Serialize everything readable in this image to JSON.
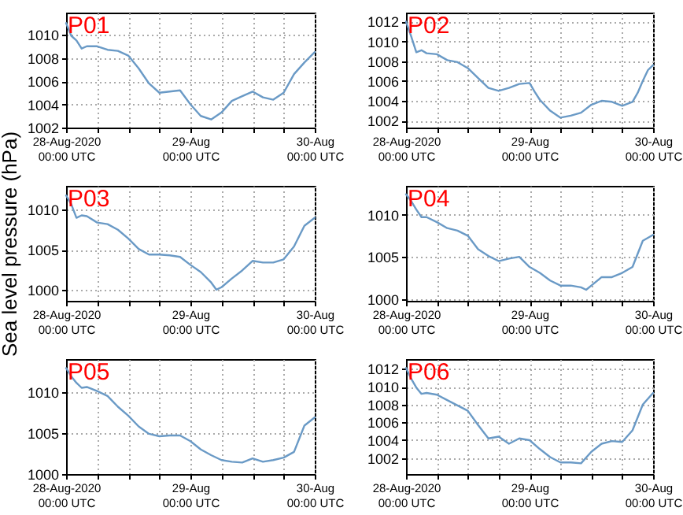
{
  "chart_data": [
    {
      "type": "line",
      "annotations": [
        "P01"
      ],
      "grid": true,
      "xlim": [
        "2020-08-28T00:00",
        "2020-08-30T00:00"
      ],
      "xticks": [
        {
          "value": "2020-08-28T00:00",
          "label": "28-Aug-2020\n00:00 UTC"
        },
        {
          "value": "2020-08-28T06:00",
          "label": null
        },
        {
          "value": "2020-08-28T12:00",
          "label": null
        },
        {
          "value": "2020-08-28T18:00",
          "label": null
        },
        {
          "value": "2020-08-29T00:00",
          "label": "29-Aug\n00:00 UTC"
        },
        {
          "value": "2020-08-29T06:00",
          "label": null
        },
        {
          "value": "2020-08-29T12:00",
          "label": null
        },
        {
          "value": "2020-08-29T18:00",
          "label": null
        },
        {
          "value": "2020-08-30T00:00",
          "label": "30-Aug\n00:00 UTC"
        }
      ],
      "ylim": [
        1002,
        1011.9
      ],
      "yticks": [
        1002,
        1004,
        1006,
        1008,
        1010
      ],
      "x": [
        "2020-08-28T00:00",
        "2020-08-28T01:00",
        "2020-08-28T02:00",
        "2020-08-28T03:00",
        "2020-08-28T04:00",
        "2020-08-28T06:00",
        "2020-08-28T08:00",
        "2020-08-28T10:00",
        "2020-08-28T12:00",
        "2020-08-28T14:00",
        "2020-08-28T16:00",
        "2020-08-28T18:00",
        "2020-08-28T20:00",
        "2020-08-28T22:00",
        "2020-08-29T00:00",
        "2020-08-29T02:00",
        "2020-08-29T04:00",
        "2020-08-29T06:00",
        "2020-08-29T08:00",
        "2020-08-29T10:00",
        "2020-08-29T12:00",
        "2020-08-29T14:00",
        "2020-08-29T16:00",
        "2020-08-29T18:00",
        "2020-08-29T20:00",
        "2020-08-29T22:00",
        "2020-08-30T00:00"
      ],
      "series": [
        {
          "color": "#6a9ac6",
          "values": [
            1011.0,
            1009.9,
            1009.5,
            1008.8,
            1009.0,
            1009.0,
            1008.7,
            1008.6,
            1008.2,
            1007.1,
            1005.8,
            1005.0,
            1005.1,
            1005.2,
            1004.0,
            1003.0,
            1002.7,
            1003.3,
            1004.3,
            1004.7,
            1005.1,
            1004.6,
            1004.4,
            1005.0,
            1006.6,
            1007.6,
            1008.5
          ]
        }
      ]
    },
    {
      "type": "line",
      "annotations": [
        "P02"
      ],
      "grid": true,
      "xlim": [
        "2020-08-28T00:00",
        "2020-08-30T00:00"
      ],
      "xticks": [
        {
          "value": "2020-08-28T00:00",
          "label": "28-Aug-2020\n00:00 UTC"
        },
        {
          "value": "2020-08-28T06:00",
          "label": null
        },
        {
          "value": "2020-08-28T12:00",
          "label": null
        },
        {
          "value": "2020-08-28T18:00",
          "label": null
        },
        {
          "value": "2020-08-29T00:00",
          "label": "29-Aug\n00:00 UTC"
        },
        {
          "value": "2020-08-29T06:00",
          "label": null
        },
        {
          "value": "2020-08-29T12:00",
          "label": null
        },
        {
          "value": "2020-08-29T18:00",
          "label": null
        },
        {
          "value": "2020-08-30T00:00",
          "label": "30-Aug\n00:00 UTC"
        }
      ],
      "ylim": [
        1001.3,
        1012.9
      ],
      "yticks": [
        1002,
        1004,
        1006,
        1008,
        1010,
        1012
      ],
      "x": [
        "2020-08-28T00:00",
        "2020-08-28T01:00",
        "2020-08-28T02:00",
        "2020-08-28T03:00",
        "2020-08-28T04:00",
        "2020-08-28T06:00",
        "2020-08-28T08:00",
        "2020-08-28T10:00",
        "2020-08-28T12:00",
        "2020-08-28T14:00",
        "2020-08-28T16:00",
        "2020-08-28T18:00",
        "2020-08-28T20:00",
        "2020-08-28T22:00",
        "2020-08-29T00:00",
        "2020-08-29T01:00",
        "2020-08-29T02:00",
        "2020-08-29T04:00",
        "2020-08-29T06:00",
        "2020-08-29T08:00",
        "2020-08-29T10:00",
        "2020-08-29T12:00",
        "2020-08-29T14:00",
        "2020-08-29T16:00",
        "2020-08-29T18:00",
        "2020-08-29T20:00",
        "2020-08-29T21:00",
        "2020-08-29T22:00",
        "2020-08-29T23:00",
        "2020-08-30T00:00"
      ],
      "series": [
        {
          "color": "#6a9ac6",
          "values": [
            1012.0,
            1010.5,
            1008.9,
            1009.1,
            1008.8,
            1008.7,
            1008.1,
            1007.9,
            1007.3,
            1006.3,
            1005.3,
            1005.0,
            1005.3,
            1005.7,
            1005.8,
            1004.9,
            1004.1,
            1003.0,
            1002.3,
            1002.5,
            1002.8,
            1003.6,
            1004.0,
            1003.9,
            1003.5,
            1003.9,
            1004.8,
            1006.0,
            1007.1,
            1007.6
          ]
        }
      ]
    },
    {
      "type": "line",
      "annotations": [
        "P03"
      ],
      "ylabel": "Sea level pressure (hPa)",
      "grid": true,
      "xlim": [
        "2020-08-28T00:00",
        "2020-08-30T00:00"
      ],
      "xticks": [
        {
          "value": "2020-08-28T00:00",
          "label": "28-Aug-2020\n00:00 UTC"
        },
        {
          "value": "2020-08-28T06:00",
          "label": null
        },
        {
          "value": "2020-08-28T12:00",
          "label": null
        },
        {
          "value": "2020-08-28T18:00",
          "label": null
        },
        {
          "value": "2020-08-29T00:00",
          "label": "29-Aug\n00:00 UTC"
        },
        {
          "value": "2020-08-29T06:00",
          "label": null
        },
        {
          "value": "2020-08-29T12:00",
          "label": null
        },
        {
          "value": "2020-08-29T18:00",
          "label": null
        },
        {
          "value": "2020-08-30T00:00",
          "label": "30-Aug\n00:00 UTC"
        }
      ],
      "ylim": [
        998.6,
        1013
      ],
      "yticks": [
        1000,
        1005,
        1010
      ],
      "x": [
        "2020-08-28T00:00",
        "2020-08-28T01:00",
        "2020-08-28T02:00",
        "2020-08-28T03:00",
        "2020-08-28T04:00",
        "2020-08-28T06:00",
        "2020-08-28T08:00",
        "2020-08-28T10:00",
        "2020-08-28T12:00",
        "2020-08-28T14:00",
        "2020-08-28T16:00",
        "2020-08-28T18:00",
        "2020-08-28T20:00",
        "2020-08-28T22:00",
        "2020-08-29T00:00",
        "2020-08-29T02:00",
        "2020-08-29T04:00",
        "2020-08-29T05:00",
        "2020-08-29T06:00",
        "2020-08-29T08:00",
        "2020-08-29T10:00",
        "2020-08-29T12:00",
        "2020-08-29T14:00",
        "2020-08-29T16:00",
        "2020-08-29T18:00",
        "2020-08-29T20:00",
        "2020-08-29T22:00",
        "2020-08-30T00:00"
      ],
      "series": [
        {
          "color": "#6a9ac6",
          "values": [
            1011.8,
            1010.7,
            1009.0,
            1009.3,
            1009.2,
            1008.4,
            1008.2,
            1007.5,
            1006.4,
            1005.1,
            1004.4,
            1004.4,
            1004.3,
            1004.1,
            1003.1,
            1002.2,
            1000.9,
            1000.0,
            1000.3,
            1001.4,
            1002.4,
            1003.6,
            1003.4,
            1003.4,
            1003.8,
            1005.4,
            1008.0,
            1009.0
          ]
        }
      ]
    },
    {
      "type": "line",
      "annotations": [
        "P04"
      ],
      "grid": true,
      "xlim": [
        "2020-08-28T00:00",
        "2020-08-30T00:00"
      ],
      "xticks": [
        {
          "value": "2020-08-28T00:00",
          "label": "28-Aug-2020\n00:00 UTC"
        },
        {
          "value": "2020-08-28T06:00",
          "label": null
        },
        {
          "value": "2020-08-28T12:00",
          "label": null
        },
        {
          "value": "2020-08-28T18:00",
          "label": null
        },
        {
          "value": "2020-08-29T00:00",
          "label": "29-Aug\n00:00 UTC"
        },
        {
          "value": "2020-08-29T06:00",
          "label": null
        },
        {
          "value": "2020-08-29T12:00",
          "label": null
        },
        {
          "value": "2020-08-29T18:00",
          "label": null
        },
        {
          "value": "2020-08-30T00:00",
          "label": "30-Aug\n00:00 UTC"
        }
      ],
      "ylim": [
        999.8,
        1013.4
      ],
      "yticks": [
        1000,
        1005,
        1010
      ],
      "x": [
        "2020-08-28T00:00",
        "2020-08-28T01:00",
        "2020-08-28T02:00",
        "2020-08-28T03:00",
        "2020-08-28T04:00",
        "2020-08-28T06:00",
        "2020-08-28T08:00",
        "2020-08-28T10:00",
        "2020-08-28T12:00",
        "2020-08-28T14:00",
        "2020-08-28T16:00",
        "2020-08-28T18:00",
        "2020-08-28T20:00",
        "2020-08-28T22:00",
        "2020-08-29T00:00",
        "2020-08-29T02:00",
        "2020-08-29T04:00",
        "2020-08-29T06:00",
        "2020-08-29T08:00",
        "2020-08-29T10:00",
        "2020-08-29T11:00",
        "2020-08-29T12:00",
        "2020-08-29T14:00",
        "2020-08-29T16:00",
        "2020-08-29T18:00",
        "2020-08-29T20:00",
        "2020-08-29T22:00",
        "2020-08-30T00:00"
      ],
      "series": [
        {
          "color": "#6a9ac6",
          "values": [
            1012.4,
            1011.6,
            1010.6,
            1009.7,
            1009.7,
            1009.1,
            1008.4,
            1008.1,
            1007.5,
            1005.9,
            1005.1,
            1004.5,
            1004.8,
            1005.0,
            1003.8,
            1003.1,
            1002.2,
            1001.6,
            1001.6,
            1001.4,
            1001.1,
            1001.6,
            1002.6,
            1002.6,
            1003.1,
            1003.8,
            1006.9,
            1007.6
          ]
        }
      ]
    },
    {
      "type": "line",
      "annotations": [
        "P05"
      ],
      "grid": true,
      "xlim": [
        "2020-08-28T00:00",
        "2020-08-30T00:00"
      ],
      "xticks": [
        {
          "value": "2020-08-28T00:00",
          "label": "28-Aug-2020\n00:00 UTC"
        },
        {
          "value": "2020-08-28T06:00",
          "label": null
        },
        {
          "value": "2020-08-28T12:00",
          "label": null
        },
        {
          "value": "2020-08-28T18:00",
          "label": null
        },
        {
          "value": "2020-08-29T00:00",
          "label": "29-Aug\n00:00 UTC"
        },
        {
          "value": "2020-08-29T06:00",
          "label": null
        },
        {
          "value": "2020-08-29T12:00",
          "label": null
        },
        {
          "value": "2020-08-29T18:00",
          "label": null
        },
        {
          "value": "2020-08-30T00:00",
          "label": "30-Aug\n00:00 UTC"
        }
      ],
      "ylim": [
        1000,
        1014
      ],
      "yticks": [
        1000,
        1005,
        1010
      ],
      "x": [
        "2020-08-28T00:00",
        "2020-08-28T01:00",
        "2020-08-28T02:00",
        "2020-08-28T03:00",
        "2020-08-28T04:00",
        "2020-08-28T06:00",
        "2020-08-28T08:00",
        "2020-08-28T10:00",
        "2020-08-28T12:00",
        "2020-08-28T14:00",
        "2020-08-28T16:00",
        "2020-08-28T18:00",
        "2020-08-28T20:00",
        "2020-08-28T22:00",
        "2020-08-29T00:00",
        "2020-08-29T02:00",
        "2020-08-29T04:00",
        "2020-08-29T06:00",
        "2020-08-29T08:00",
        "2020-08-29T10:00",
        "2020-08-29T12:00",
        "2020-08-29T14:00",
        "2020-08-29T16:00",
        "2020-08-29T18:00",
        "2020-08-29T20:00",
        "2020-08-29T22:00",
        "2020-08-30T00:00"
      ],
      "series": [
        {
          "color": "#6a9ac6",
          "values": [
            1012.9,
            1011.9,
            1011.1,
            1010.5,
            1010.6,
            1010.1,
            1009.5,
            1008.2,
            1007.1,
            1005.8,
            1004.9,
            1004.6,
            1004.7,
            1004.7,
            1004.0,
            1003.0,
            1002.3,
            1001.7,
            1001.5,
            1001.4,
            1001.9,
            1001.5,
            1001.7,
            1002.0,
            1002.7,
            1005.9,
            1006.9
          ]
        }
      ]
    },
    {
      "type": "line",
      "annotations": [
        "P06"
      ],
      "grid": true,
      "xlim": [
        "2020-08-28T00:00",
        "2020-08-30T00:00"
      ],
      "xticks": [
        {
          "value": "2020-08-28T00:00",
          "label": "28-Aug-2020\n00:00 UTC"
        },
        {
          "value": "2020-08-28T06:00",
          "label": null
        },
        {
          "value": "2020-08-28T12:00",
          "label": null
        },
        {
          "value": "2020-08-28T18:00",
          "label": null
        },
        {
          "value": "2020-08-29T00:00",
          "label": "29-Aug\n00:00 UTC"
        },
        {
          "value": "2020-08-29T06:00",
          "label": null
        },
        {
          "value": "2020-08-29T12:00",
          "label": null
        },
        {
          "value": "2020-08-29T18:00",
          "label": null
        },
        {
          "value": "2020-08-30T00:00",
          "label": "30-Aug\n00:00 UTC"
        }
      ],
      "ylim": [
        1000.2,
        1013.1
      ],
      "yticks": [
        1002,
        1004,
        1006,
        1008,
        1010,
        1012
      ],
      "x": [
        "2020-08-28T00:00",
        "2020-08-28T01:00",
        "2020-08-28T02:00",
        "2020-08-28T03:00",
        "2020-08-28T04:00",
        "2020-08-28T06:00",
        "2020-08-28T08:00",
        "2020-08-28T10:00",
        "2020-08-28T12:00",
        "2020-08-28T14:00",
        "2020-08-28T16:00",
        "2020-08-28T18:00",
        "2020-08-28T20:00",
        "2020-08-28T22:00",
        "2020-08-29T00:00",
        "2020-08-29T02:00",
        "2020-08-29T04:00",
        "2020-08-29T06:00",
        "2020-08-29T08:00",
        "2020-08-29T10:00",
        "2020-08-29T12:00",
        "2020-08-29T14:00",
        "2020-08-29T16:00",
        "2020-08-29T18:00",
        "2020-08-29T20:00",
        "2020-08-29T22:00",
        "2020-08-30T00:00"
      ],
      "series": [
        {
          "color": "#6a9ac6",
          "values": [
            1012.1,
            1010.9,
            1009.9,
            1009.2,
            1009.3,
            1009.1,
            1008.5,
            1007.9,
            1007.3,
            1005.7,
            1004.2,
            1004.4,
            1003.6,
            1004.2,
            1004.0,
            1003.0,
            1002.1,
            1001.5,
            1001.5,
            1001.4,
            1002.7,
            1003.6,
            1003.9,
            1003.8,
            1005.1,
            1008.0,
            1009.3
          ]
        }
      ]
    }
  ]
}
